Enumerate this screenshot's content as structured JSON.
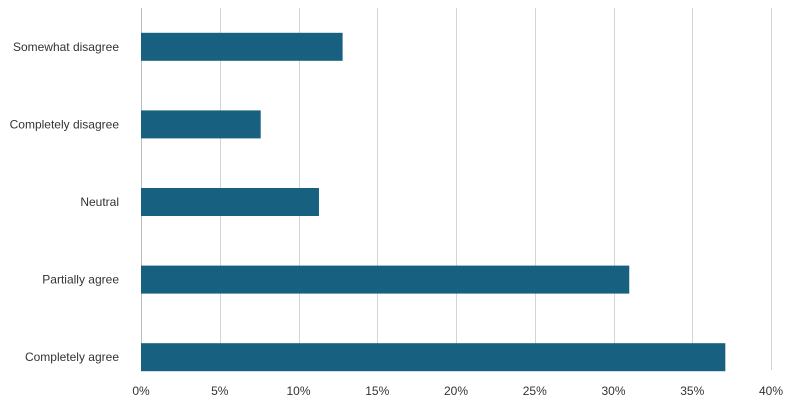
{
  "chart_data": {
    "type": "bar",
    "orientation": "horizontal",
    "categories": [
      "Somewhat disagree",
      "Completely disagree",
      "Neutral",
      "Partially agree",
      "Completely agree"
    ],
    "values": [
      12.8,
      7.6,
      11.3,
      31.0,
      37.1
    ],
    "unit": "%",
    "xlim": [
      0,
      40
    ],
    "xticks": [
      "0%",
      "5%",
      "10%",
      "15%",
      "20%",
      "25%",
      "30%",
      "35%",
      "40%"
    ],
    "grid": true,
    "legend": "none",
    "title": "",
    "xlabel": "",
    "ylabel": "",
    "bar_color": "#17607f",
    "grid_color": "#d4d4d4",
    "text_color": "#333333"
  }
}
